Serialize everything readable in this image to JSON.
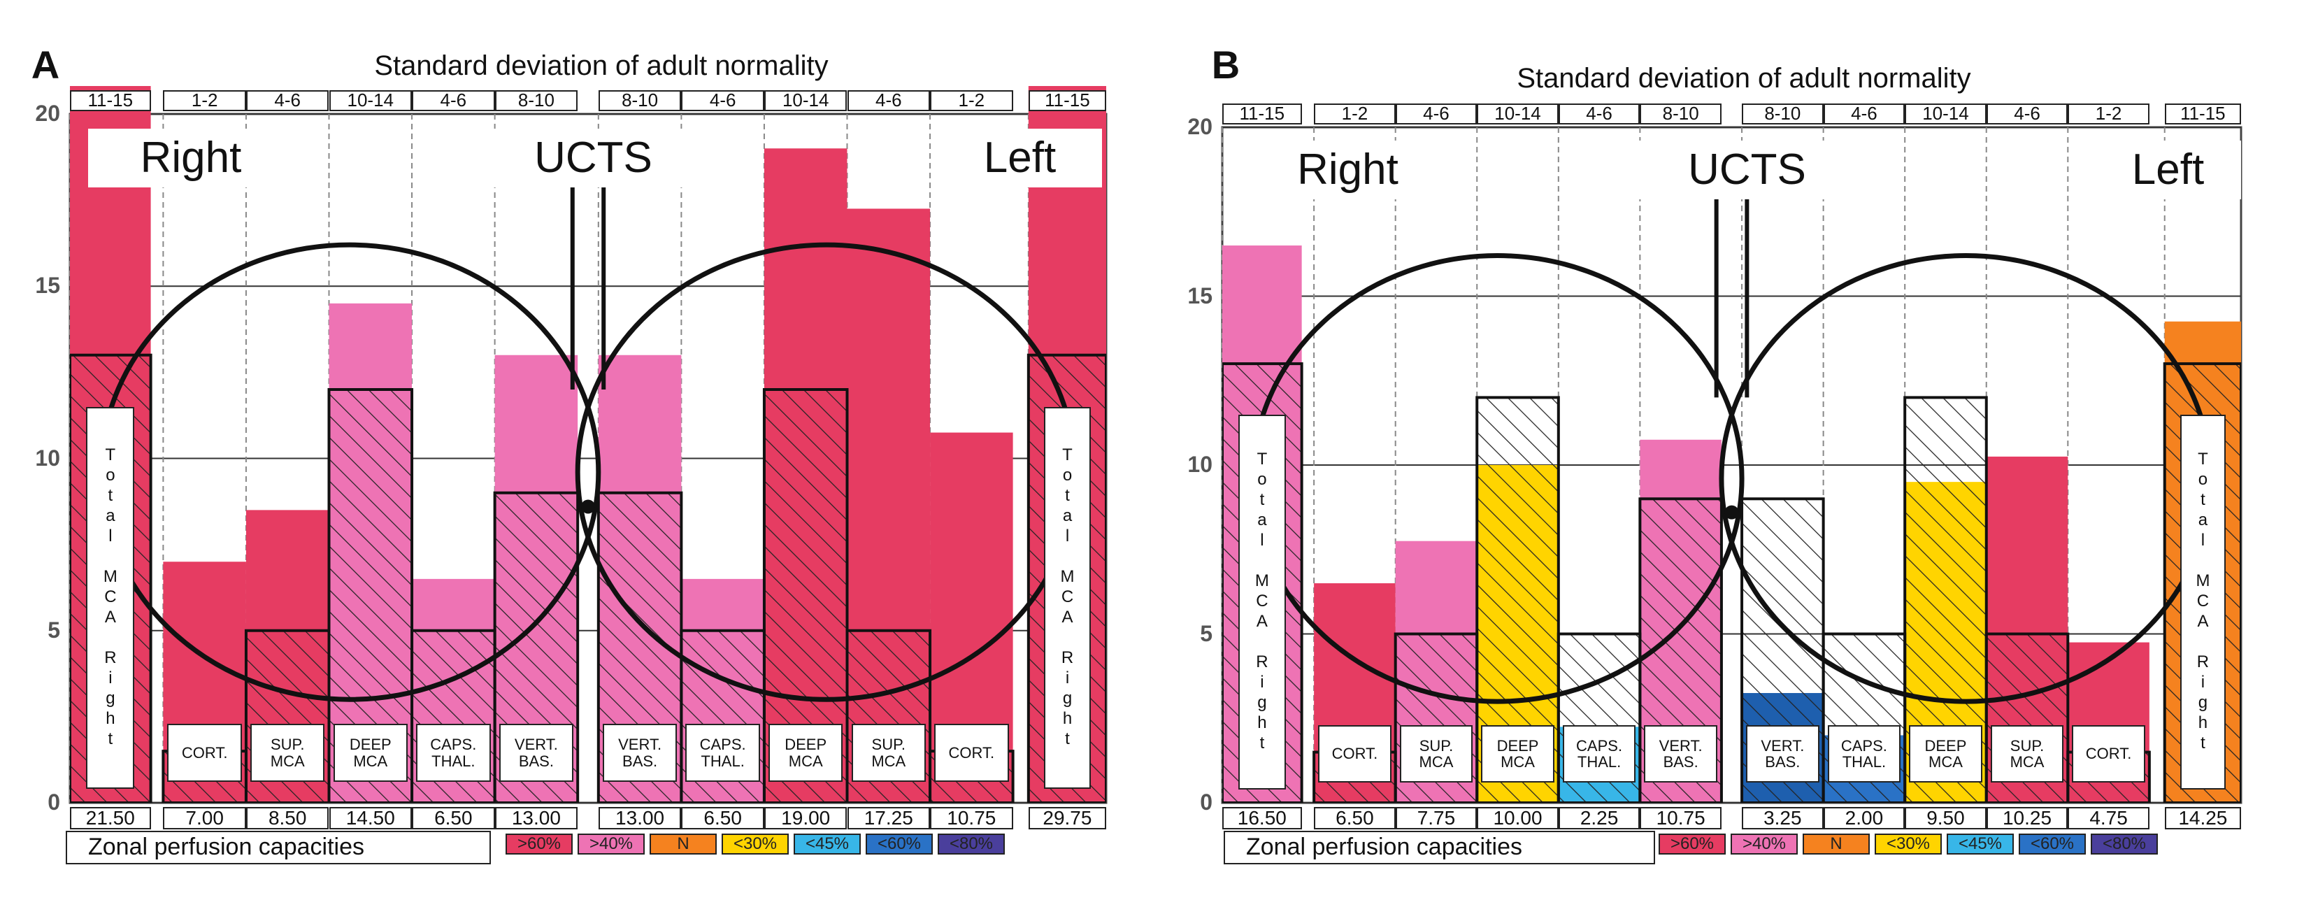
{
  "chart_data": [
    {
      "type": "bar",
      "panel": "A",
      "title": "Standard deviation of adult normality",
      "top_labels": [
        "11-15",
        "1-2",
        "4-6",
        "10-14",
        "4-6",
        "8-10",
        "8-10",
        "4-6",
        "10-14",
        "4-6",
        "1-2",
        "11-15"
      ],
      "categories": [
        "Total MCA Right",
        "CORT.",
        "SUP. MCA",
        "DEEP MCA",
        "CAPS. THAL.",
        "VERT. BAS.",
        "VERT. BAS.",
        "CAPS. THAL.",
        "DEEP MCA",
        "SUP. MCA",
        "CORT.",
        "Total MCA Right"
      ],
      "values": [
        21.5,
        7,
        8.5,
        14.5,
        6.5,
        13,
        13,
        6.5,
        19,
        17.25,
        10.75,
        29.75
      ],
      "value_labels": [
        "21.50",
        "7.00",
        "8.50",
        "14.50",
        "6.50",
        "13.00",
        "13.00",
        "6.50",
        "19.00",
        "17.25",
        "10.75",
        "29.75"
      ],
      "colors": [
        "#e63c62",
        "#e63c62",
        "#e63c62",
        "#ee73b4",
        "#ee73b4",
        "#ee73b4",
        "#ee73b4",
        "#ee73b4",
        "#e63c62",
        "#e63c62",
        "#e63c62",
        "#e63c62"
      ],
      "normal_values": [
        13,
        1.5,
        5,
        12,
        5,
        9,
        9,
        5,
        12,
        5,
        1.5,
        13
      ],
      "ylim": [
        0,
        20
      ],
      "yticks": [
        0,
        5,
        10,
        15,
        20
      ],
      "annotations": [
        "Right",
        "UCTS",
        "Left"
      ],
      "footer": "Zonal perfusion capacities",
      "legend": [
        {
          "label": ">60%",
          "color": "#e63c62"
        },
        {
          "label": ">40%",
          "color": "#ee73b4"
        },
        {
          "label": "N",
          "color": "#f5821f"
        },
        {
          "label": "<30%",
          "color": "#ffd400"
        },
        {
          "label": "<45%",
          "color": "#38b6e8"
        },
        {
          "label": "<60%",
          "color": "#2a72c6"
        },
        {
          "label": "<80%",
          "color": "#4a3f9c"
        }
      ]
    },
    {
      "type": "bar",
      "panel": "B",
      "title": "Standard deviation of adult normality",
      "top_labels": [
        "11-15",
        "1-2",
        "4-6",
        "10-14",
        "4-6",
        "8-10",
        "8-10",
        "4-6",
        "10-14",
        "4-6",
        "1-2",
        "11-15"
      ],
      "categories": [
        "Total MCA Right",
        "CORT.",
        "SUP. MCA",
        "DEEP MCA",
        "CAPS. THAL.",
        "VERT. BAS.",
        "VERT. BAS.",
        "CAPS. THAL.",
        "DEEP MCA",
        "SUP. MCA",
        "CORT.",
        "Total MCA Right"
      ],
      "values": [
        16.5,
        6.5,
        7.75,
        10,
        2.25,
        10.75,
        3.25,
        2,
        9.5,
        10.25,
        4.75,
        14.25
      ],
      "value_labels": [
        "16.50",
        "6.50",
        "7.75",
        "10.00",
        "2.25",
        "10.75",
        "3.25",
        "2.00",
        "9.50",
        "10.25",
        "4.75",
        "14.25"
      ],
      "colors": [
        "#ee73b4",
        "#e63c62",
        "#ee73b4",
        "#ffd400",
        "#38b6e8",
        "#ee73b4",
        "#1e5fae",
        "#2a72c6",
        "#ffd400",
        "#e63c62",
        "#e63c62",
        "#f5821f"
      ],
      "normal_values": [
        13,
        1.5,
        5,
        12,
        5,
        9,
        9,
        5,
        12,
        5,
        1.5,
        13
      ],
      "ylim": [
        0,
        20
      ],
      "yticks": [
        0,
        5,
        10,
        15,
        20
      ],
      "annotations": [
        "Right",
        "UCTS",
        "Left"
      ],
      "footer": "Zonal perfusion capacities",
      "legend": [
        {
          "label": ">60%",
          "color": "#e63c62"
        },
        {
          "label": ">40%",
          "color": "#ee73b4"
        },
        {
          "label": "N",
          "color": "#f5821f"
        },
        {
          "label": "<30%",
          "color": "#ffd400"
        },
        {
          "label": "<45%",
          "color": "#38b6e8"
        },
        {
          "label": "<60%",
          "color": "#2a72c6"
        },
        {
          "label": "<80%",
          "color": "#4a3f9c"
        }
      ]
    }
  ]
}
